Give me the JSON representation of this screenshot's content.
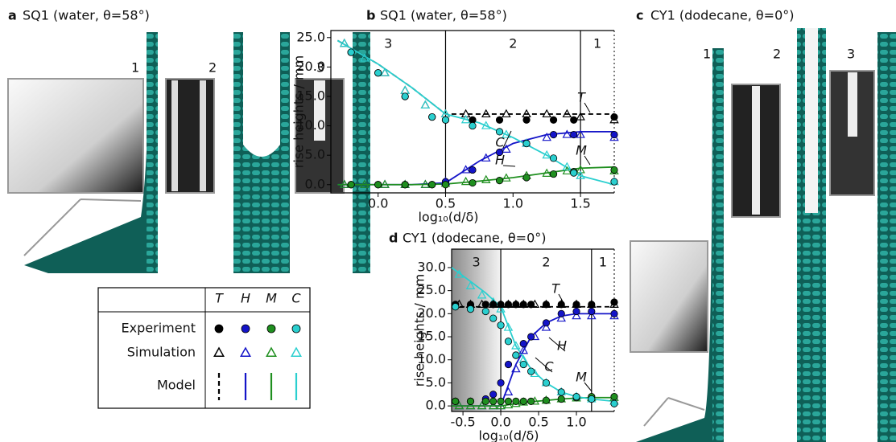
{
  "panels": {
    "a": {
      "letter": "a",
      "title": "SQ1 (water, θ=58°)",
      "labels": [
        "1",
        "2",
        "3"
      ]
    },
    "c": {
      "letter": "c",
      "title": "CY1 (dodecane, θ=0°)",
      "labels": [
        "1",
        "2",
        "3"
      ]
    }
  },
  "legend": {
    "columns": [
      "T",
      "H",
      "M",
      "C"
    ],
    "rows": [
      "Experiment",
      "Simulation",
      "Model"
    ]
  },
  "chart_data": [
    {
      "type": "scatter",
      "letter": "b",
      "title": "SQ1 (water, θ=58°)",
      "xlabel": "log₁₀(d/δ)",
      "ylabel": "rise heights / mm",
      "xlim": [
        -0.35,
        1.75
      ],
      "xticks": [
        {
          "value": 0,
          "label": "0.0"
        },
        {
          "value": 0.5,
          "label": "0.5"
        },
        {
          "value": 1,
          "label": "1.0"
        },
        {
          "value": 1.5,
          "label": "1.5"
        }
      ],
      "ylim": [
        -1.4,
        26.2
      ],
      "yticks": [
        {
          "value": 0,
          "label": "0.0"
        },
        {
          "value": 5,
          "label": "5.0"
        },
        {
          "value": 10,
          "label": "10.0"
        },
        {
          "value": 15,
          "label": "15.0"
        },
        {
          "value": 20,
          "label": "20.0"
        },
        {
          "value": 25,
          "label": "25.0"
        }
      ],
      "vlines": [
        0.5,
        1.5
      ],
      "regions": [
        "3",
        "2",
        "1"
      ],
      "experiment": {
        "x": [
          -0.2,
          0.0,
          0.2,
          0.4,
          0.5,
          0.7,
          0.9,
          1.1,
          1.3,
          1.45,
          1.75
        ],
        "series": [
          {
            "name": "T",
            "color": "#000000",
            "values": [
              22.5,
              19,
              15,
              11.5,
              11,
              11,
              11,
              11,
              11,
              11,
              11.5
            ]
          },
          {
            "name": "H",
            "color": "#1414c8",
            "values": [
              0,
              0,
              0,
              0,
              0.5,
              2.5,
              5.5,
              7,
              8.5,
              8.5,
              8.5
            ]
          },
          {
            "name": "M",
            "color": "#1f8f1f",
            "values": [
              0,
              0,
              0,
              0,
              0,
              0.3,
              0.7,
              1.2,
              1.8,
              2.2,
              2.5
            ]
          },
          {
            "name": "C",
            "color": "#2acfcf",
            "values": [
              22.5,
              19,
              15,
              11.5,
              11,
              10,
              9,
              7,
              4.5,
              2,
              0.5
            ]
          }
        ]
      },
      "simulation": {
        "x": [
          -0.25,
          -0.1,
          0.05,
          0.2,
          0.35,
          0.5,
          0.65,
          0.8,
          0.95,
          1.1,
          1.25,
          1.4,
          1.5,
          1.75
        ],
        "series": [
          {
            "name": "T",
            "color": "#000000",
            "values": [
              24,
              21.5,
              19,
              16,
              13.5,
              12,
              12,
              12,
              12,
              12,
              12,
              12,
              11.5,
              11
            ]
          },
          {
            "name": "H",
            "color": "#1414c8",
            "values": [
              0,
              0,
              0,
              0,
              0,
              0.5,
              2.5,
              4.5,
              6,
              7,
              8,
              8.5,
              8.5,
              8
            ]
          },
          {
            "name": "M",
            "color": "#1f8f1f",
            "values": [
              0,
              0,
              0,
              0,
              0,
              0.2,
              0.5,
              0.8,
              1.1,
              1.5,
              1.9,
              2.3,
              2.5,
              2.3
            ]
          },
          {
            "name": "C",
            "color": "#2acfcf",
            "values": [
              24,
              21.5,
              19,
              16,
              13.5,
              12,
              11,
              10,
              8.5,
              7,
              5,
              3,
              1.5,
              0.5
            ]
          }
        ]
      },
      "model": {
        "x": [
          -0.3,
          0,
          0.25,
          0.5,
          0.75,
          1.0,
          1.25,
          1.5,
          1.75
        ],
        "series": [
          {
            "name": "T",
            "color": "#000000",
            "dashed": true,
            "values": [
              24.5,
              20.5,
              16.5,
              12,
              12,
              12,
              12,
              12,
              12
            ]
          },
          {
            "name": "H",
            "color": "#1414c8",
            "values": [
              0,
              0,
              0,
              0.3,
              4,
              7,
              8.5,
              9,
              9
            ]
          },
          {
            "name": "M",
            "color": "#1f8f1f",
            "values": [
              0,
              0,
              0,
              0.1,
              0.6,
              1.2,
              2,
              2.8,
              3
            ]
          },
          {
            "name": "C",
            "color": "#2acfcf",
            "values": [
              24.5,
              20.5,
              16.5,
              12,
              10.5,
              8,
              5,
              1.5,
              0
            ]
          }
        ]
      }
    },
    {
      "type": "scatter",
      "letter": "d",
      "title": "CY1 (dodecane, θ=0°)",
      "xlabel": "log₁₀(d/δ)",
      "ylabel": "rise heights / mm",
      "xlim": [
        -0.65,
        1.5
      ],
      "xticks": [
        {
          "value": -0.5,
          "label": "-0.5"
        },
        {
          "value": 0,
          "label": "0.0"
        },
        {
          "value": 0.5,
          "label": "0.5"
        },
        {
          "value": 1,
          "label": "1.0"
        }
      ],
      "ylim": [
        -1.2,
        34
      ],
      "yticks": [
        {
          "value": 0,
          "label": "0.0"
        },
        {
          "value": 5,
          "label": "5.0"
        },
        {
          "value": 10,
          "label": "10.0"
        },
        {
          "value": 15,
          "label": "15.0"
        },
        {
          "value": 20,
          "label": "20.0"
        },
        {
          "value": 25,
          "label": "25.0"
        },
        {
          "value": 30,
          "label": "30.0"
        }
      ],
      "vlines": [
        0,
        1.2
      ],
      "regions": [
        "3",
        "2",
        "1"
      ],
      "shade_first_region": true,
      "experiment": {
        "x": [
          -0.6,
          -0.4,
          -0.2,
          -0.1,
          0,
          0.1,
          0.2,
          0.3,
          0.4,
          0.6,
          0.8,
          1.0,
          1.2,
          1.5
        ],
        "series": [
          {
            "name": "T",
            "color": "#000000",
            "values": [
              22,
              22,
              22,
              22,
              22,
              22,
              22,
              22,
              22,
              22,
              22,
              22,
              22,
              22.5
            ]
          },
          {
            "name": "H",
            "color": "#1414c8",
            "values": [
              1,
              1,
              1.5,
              2.5,
              5,
              9,
              11,
              13.5,
              15,
              18,
              20,
              20.5,
              20.5,
              20
            ]
          },
          {
            "name": "M",
            "color": "#1f8f1f",
            "values": [
              1,
              1,
              1,
              1,
              1,
              1,
              1,
              1,
              1,
              1.2,
              1.5,
              1.8,
              2,
              2
            ]
          },
          {
            "name": "C",
            "color": "#2acfcf",
            "values": [
              21.5,
              21,
              20.5,
              19,
              17.5,
              14,
              11,
              9,
              7.5,
              5,
              3,
              2,
              1.5,
              0.5
            ]
          }
        ]
      },
      "simulation": {
        "x": [
          -0.55,
          -0.4,
          -0.25,
          -0.1,
          0,
          0.1,
          0.2,
          0.3,
          0.45,
          0.6,
          0.8,
          1.0,
          1.2,
          1.5
        ],
        "series": [
          {
            "name": "T",
            "color": "#000000",
            "values": [
              22,
              22,
              22,
              22,
              22,
              22,
              22,
              22,
              22,
              22,
              22,
              22,
              22,
              22
            ]
          },
          {
            "name": "H",
            "color": "#1414c8",
            "values": [
              0,
              0,
              0,
              0,
              0,
              3,
              8,
              12,
              15,
              17,
              19,
              19.5,
              19.5,
              19.5
            ]
          },
          {
            "name": "M",
            "color": "#1f8f1f",
            "values": [
              0,
              0,
              0,
              0,
              0,
              0.2,
              0.5,
              0.8,
              1,
              1.2,
              1.5,
              1.7,
              1.8,
              1.8
            ]
          },
          {
            "name": "C",
            "color": "#2acfcf",
            "values": [
              28.5,
              26,
              24,
              22.5,
              21,
              17,
              13,
              10,
              7,
              5,
              3,
              2,
              1.5,
              1
            ]
          }
        ]
      },
      "model": {
        "x": [
          -0.65,
          -0.4,
          -0.2,
          0,
          0.2,
          0.4,
          0.6,
          0.8,
          1,
          1.2,
          1.5
        ],
        "series": [
          {
            "name": "T",
            "color": "#000000",
            "dashed": true,
            "values": [
              21.5,
              21.5,
              21.5,
              21.5,
              21.5,
              21.5,
              21.5,
              21.5,
              21.5,
              21.5,
              21.5
            ]
          },
          {
            "name": "H",
            "color": "#1414c8",
            "values": [
              0,
              0,
              0,
              0,
              9,
              15,
              18,
              19.5,
              20,
              20,
              20
            ]
          },
          {
            "name": "M",
            "color": "#1f8f1f",
            "values": [
              0,
              0,
              0,
              0,
              0.5,
              0.9,
              1.2,
              1.5,
              1.7,
              1.8,
              1.8
            ]
          },
          {
            "name": "C",
            "color": "#2acfcf",
            "values": [
              30,
              27,
              24.5,
              21.5,
              13,
              8,
              5,
              3,
              2,
              1.5,
              1
            ]
          }
        ]
      }
    }
  ]
}
